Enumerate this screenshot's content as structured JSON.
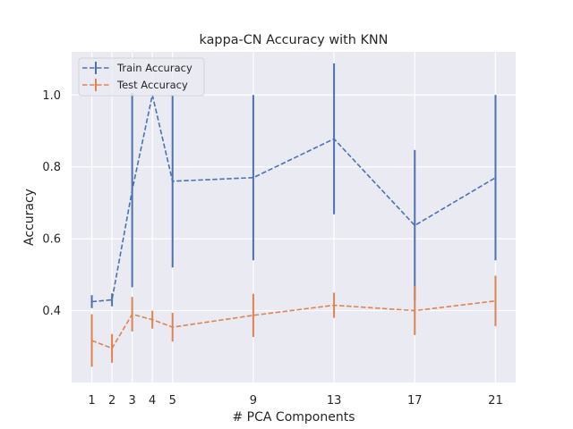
{
  "chart_data": {
    "type": "line",
    "title": "kappa-CN Accuracy with KNN",
    "xlabel": "# PCA Components",
    "ylabel": "Accuracy",
    "x": [
      1,
      2,
      3,
      4,
      5,
      9,
      13,
      17,
      21
    ],
    "x_ticks": [
      "1",
      "2",
      "3",
      "4",
      "5",
      "9",
      "13",
      "17",
      "21"
    ],
    "y_ticks": [
      "0.4",
      "0.6",
      "0.8",
      "1.0"
    ],
    "xlim": [
      0,
      22
    ],
    "ylim": [
      0.2,
      1.12
    ],
    "grid": true,
    "legend_position": "top-left",
    "series": [
      {
        "name": "Train Accuracy",
        "color": "#4c72b0",
        "line_style": "dashed",
        "values": [
          0.425,
          0.43,
          0.735,
          1.0,
          0.76,
          0.77,
          0.878,
          0.637,
          0.77
        ],
        "errors": [
          0.018,
          0.018,
          0.27,
          0.0,
          0.24,
          0.23,
          0.21,
          0.21,
          0.23
        ]
      },
      {
        "name": "Test Accuracy",
        "color": "#dd8452",
        "line_style": "dashed",
        "values": [
          0.317,
          0.295,
          0.39,
          0.375,
          0.354,
          0.387,
          0.415,
          0.4,
          0.427
        ],
        "errors": [
          0.073,
          0.04,
          0.048,
          0.025,
          0.04,
          0.06,
          0.035,
          0.068,
          0.07
        ]
      }
    ]
  }
}
